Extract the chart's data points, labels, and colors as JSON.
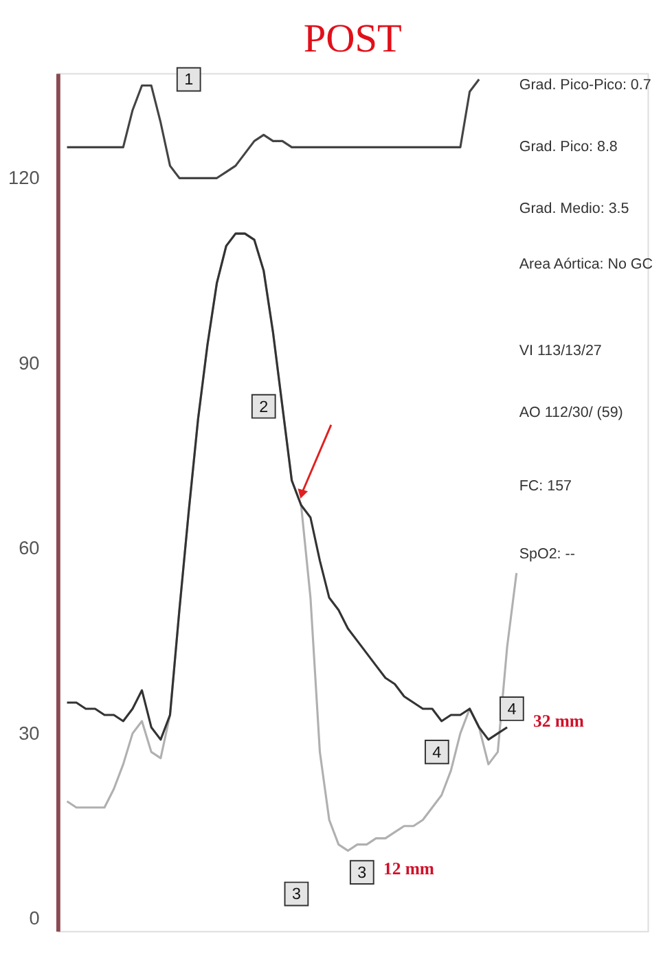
{
  "chart_data": {
    "type": "line",
    "title": "POST",
    "categories": [
      null,
      null,
      null,
      null,
      null,
      null,
      null,
      null,
      null,
      null,
      null,
      null,
      null,
      null,
      null,
      null,
      null,
      null,
      null,
      null,
      null,
      null,
      null,
      null,
      null,
      null,
      null,
      null,
      null,
      null,
      null,
      null,
      null,
      null,
      null,
      null,
      null,
      null,
      null,
      null,
      null,
      null,
      null,
      null,
      null,
      null,
      null,
      null,
      null,
      null,
      null
    ],
    "series": [
      {
        "color": "#444444",
        "values": [
          125,
          125,
          125,
          125,
          125,
          125,
          125,
          131,
          135,
          135,
          129,
          122,
          120,
          120,
          120,
          120,
          120,
          121,
          122,
          124,
          126,
          127,
          126,
          126,
          125,
          125,
          125,
          125,
          125,
          125,
          125,
          125,
          125,
          125,
          125,
          125,
          125,
          125,
          125,
          125,
          125,
          125,
          125,
          134,
          136,
          null,
          null,
          null,
          null,
          null,
          null
        ]
      },
      {
        "color": "#b0b0b0",
        "values": [
          19,
          18,
          18,
          18,
          18,
          21,
          25,
          30,
          32,
          27,
          26,
          33,
          50,
          66,
          81,
          93,
          103,
          109,
          111,
          111,
          110,
          105,
          95,
          83,
          71,
          67,
          52,
          27,
          16,
          12,
          11,
          12,
          12,
          13,
          13,
          14,
          15,
          15,
          16,
          18,
          20,
          24,
          30,
          34,
          31,
          25,
          27,
          44,
          56,
          null,
          null
        ]
      },
      {
        "color": "#333333",
        "values": [
          35,
          35,
          34,
          34,
          33,
          33,
          32,
          34,
          37,
          31,
          29,
          33,
          50,
          66,
          81,
          93,
          103,
          109,
          111,
          111,
          110,
          105,
          95,
          83,
          71,
          67,
          65,
          58,
          52,
          50,
          47,
          45,
          43,
          41,
          39,
          38,
          36,
          35,
          34,
          34,
          32,
          33,
          33,
          34,
          31,
          29,
          30,
          31,
          null,
          null,
          null
        ]
      }
    ],
    "ylim": [
      -2,
      137
    ],
    "yticks": [
      0,
      30,
      60,
      90,
      120
    ],
    "tick_labels": "y",
    "grid": false,
    "marker": "none",
    "line_style": "solid",
    "annotations": [
      "Grad. Pico-Pico: 0.7",
      "Grad. Pico: 8.8",
      "Grad. Medio: 3.5",
      "Area Aórtica: No GC",
      "VI 113/13/27",
      "AO 112/30/ (59)",
      "FC: 157",
      "SpO2: --",
      "1",
      "2",
      "3",
      "3",
      "4",
      "4",
      "12 mm",
      "32 mm"
    ]
  }
}
